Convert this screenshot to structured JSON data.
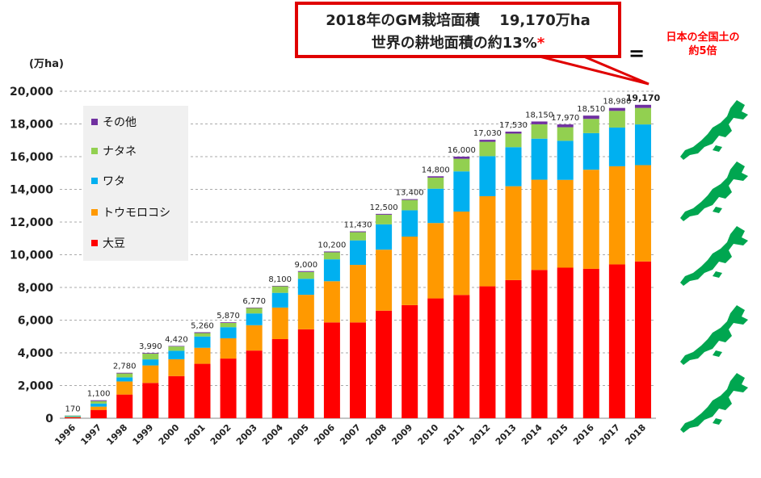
{
  "callout": {
    "line1": "2018年のGM栽培面積　 19,170万ha",
    "line2": "世界の耕地面積の約13%",
    "asterisk": "*"
  },
  "equals_sign": "=",
  "japan_note": {
    "line1": "日本の全国土の",
    "line2": "約5倍"
  },
  "colors": {
    "soy": "#ff0000",
    "corn": "#ff9900",
    "cotton": "#00b0f0",
    "canola": "#92d050",
    "other": "#7030a0",
    "map": "#00a650",
    "callout_border": "#e00000"
  },
  "chart_data": {
    "type": "bar",
    "stacked": true,
    "ylabel": "(万ha)",
    "ylim": [
      0,
      20000
    ],
    "yticks": [
      "0",
      "2,000",
      "4,000",
      "6,000",
      "8,000",
      "10,000",
      "12,000",
      "14,000",
      "16,000",
      "18,000",
      "20,000"
    ],
    "grid": true,
    "legend_position": "top-left",
    "categories": [
      "1996",
      "1997",
      "1998",
      "1999",
      "2000",
      "2001",
      "2002",
      "2003",
      "2004",
      "2005",
      "2006",
      "2007",
      "2008",
      "2009",
      "2010",
      "2011",
      "2012",
      "2013",
      "2014",
      "2015",
      "2016",
      "2017",
      "2018"
    ],
    "totals": [
      170,
      1100,
      2780,
      3990,
      4420,
      5260,
      5870,
      6770,
      8100,
      9000,
      10200,
      11430,
      12500,
      13400,
      14800,
      16000,
      17030,
      17530,
      18150,
      17970,
      18510,
      18980,
      19170
    ],
    "total_labels": [
      "170",
      "1,100",
      "2,780",
      "3,990",
      "4,420",
      "5,260",
      "5,870",
      "6,770",
      "8,100",
      "9,000",
      "10,200",
      "11,430",
      "12,500",
      "13,400",
      "14,800",
      "16,000",
      "17,030",
      "17,530",
      "18,150",
      "17,970",
      "18,510",
      "18,980",
      "19,170"
    ],
    "series": [
      {
        "name": "大豆",
        "color": "#ff0000",
        "values": [
          50,
          510,
          1450,
          2160,
          2580,
          3330,
          3650,
          4140,
          4840,
          5440,
          5860,
          5860,
          6580,
          6920,
          7330,
          7540,
          8070,
          8450,
          9070,
          9210,
          9140,
          9410,
          9590
        ]
      },
      {
        "name": "トウモロコシ",
        "color": "#ff9900",
        "values": [
          30,
          200,
          800,
          1070,
          1030,
          980,
          1240,
          1550,
          1930,
          2110,
          2520,
          3520,
          3730,
          4190,
          4610,
          5100,
          5510,
          5740,
          5520,
          5370,
          6060,
          6000,
          5890
        ]
      },
      {
        "name": "ワタ",
        "color": "#00b0f0",
        "values": [
          50,
          190,
          250,
          370,
          520,
          690,
          680,
          720,
          900,
          980,
          1340,
          1500,
          1550,
          1610,
          2100,
          2460,
          2450,
          2390,
          2510,
          2390,
          2240,
          2370,
          2490
        ]
      },
      {
        "name": "ナタネ",
        "color": "#92d050",
        "values": [
          35,
          150,
          240,
          350,
          260,
          210,
          260,
          330,
          400,
          420,
          430,
          500,
          590,
          630,
          680,
          770,
          880,
          830,
          880,
          830,
          870,
          1020,
          1010
        ]
      },
      {
        "name": "その他",
        "color": "#7030a0",
        "values": [
          5,
          50,
          40,
          40,
          30,
          50,
          40,
          30,
          30,
          50,
          50,
          50,
          50,
          50,
          80,
          130,
          120,
          120,
          170,
          170,
          200,
          180,
          190
        ]
      }
    ]
  }
}
